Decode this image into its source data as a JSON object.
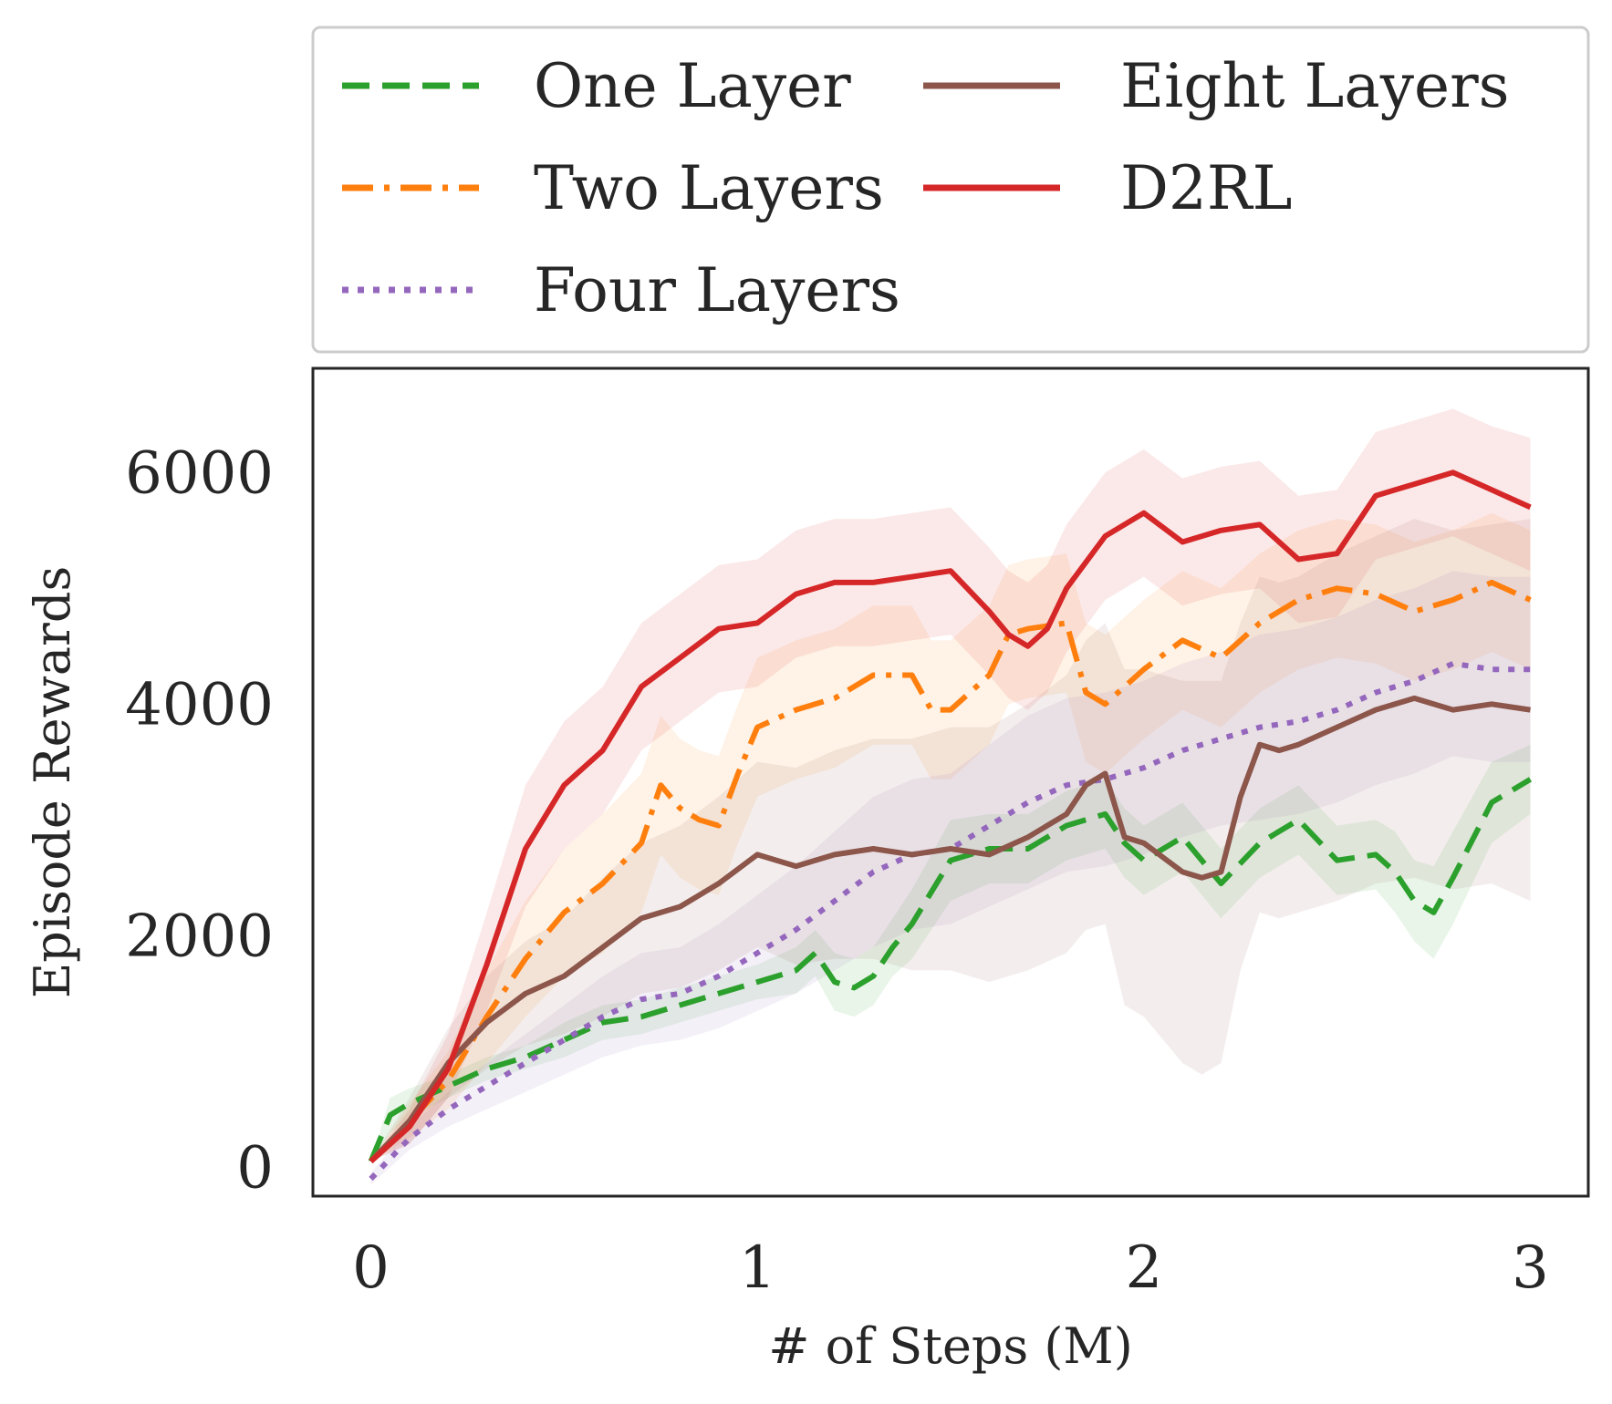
{
  "chart_data": {
    "type": "line",
    "title": "",
    "xlabel": "# of Steps (M)",
    "ylabel": "Episode Rewards",
    "xlim": [
      -0.15,
      3.15
    ],
    "ylim": [
      -250,
      6900
    ],
    "xticks": [
      0,
      1,
      2,
      3
    ],
    "yticks": [
      0,
      2000,
      4000,
      6000
    ],
    "grid": false,
    "legend_placement": "above plot, two columns",
    "series": [
      {
        "name": "One Layer",
        "color": "#2ca02c",
        "dash": "dashed",
        "x": [
          0,
          0.05,
          0.1,
          0.2,
          0.3,
          0.4,
          0.5,
          0.6,
          0.7,
          0.8,
          0.9,
          1.0,
          1.1,
          1.15,
          1.2,
          1.25,
          1.3,
          1.35,
          1.4,
          1.5,
          1.6,
          1.7,
          1.8,
          1.9,
          1.95,
          2.0,
          2.1,
          2.2,
          2.3,
          2.4,
          2.5,
          2.6,
          2.65,
          2.7,
          2.75,
          2.8,
          2.9,
          3.0
        ],
        "y": [
          50,
          450,
          550,
          700,
          850,
          950,
          1100,
          1250,
          1300,
          1400,
          1500,
          1600,
          1700,
          1850,
          1600,
          1550,
          1650,
          1900,
          2100,
          2650,
          2750,
          2750,
          2950,
          3050,
          2800,
          2650,
          2850,
          2450,
          2800,
          3000,
          2650,
          2700,
          2550,
          2300,
          2200,
          2500,
          3150,
          3350
        ],
        "band": [
          [
            50,
            50
          ],
          [
            300,
            600
          ],
          [
            420,
            680
          ],
          [
            600,
            800
          ],
          [
            750,
            950
          ],
          [
            850,
            1050
          ],
          [
            950,
            1250
          ],
          [
            1100,
            1400
          ],
          [
            1150,
            1450
          ],
          [
            1250,
            1550
          ],
          [
            1350,
            1650
          ],
          [
            1450,
            1750
          ],
          [
            1500,
            1900
          ],
          [
            1650,
            2050
          ],
          [
            1350,
            1850
          ],
          [
            1300,
            1800
          ],
          [
            1400,
            1900
          ],
          [
            1650,
            2150
          ],
          [
            1800,
            2400
          ],
          [
            2300,
            3000
          ],
          [
            2450,
            3050
          ],
          [
            2450,
            3050
          ],
          [
            2650,
            3250
          ],
          [
            2750,
            3350
          ],
          [
            2500,
            3100
          ],
          [
            2350,
            2950
          ],
          [
            2550,
            3150
          ],
          [
            2150,
            2750
          ],
          [
            2500,
            3100
          ],
          [
            2700,
            3300
          ],
          [
            2350,
            2950
          ],
          [
            2400,
            3000
          ],
          [
            2200,
            2900
          ],
          [
            1950,
            2650
          ],
          [
            1800,
            2600
          ],
          [
            2100,
            2900
          ],
          [
            2800,
            3500
          ],
          [
            3050,
            3650
          ]
        ]
      },
      {
        "name": "Two Layers",
        "color": "#ff7f0e",
        "dash": "dashdot",
        "x": [
          0,
          0.1,
          0.2,
          0.3,
          0.4,
          0.5,
          0.6,
          0.7,
          0.75,
          0.8,
          0.85,
          0.9,
          0.95,
          1.0,
          1.1,
          1.2,
          1.3,
          1.4,
          1.45,
          1.5,
          1.6,
          1.65,
          1.7,
          1.8,
          1.85,
          1.9,
          2.0,
          2.1,
          2.2,
          2.3,
          2.4,
          2.5,
          2.6,
          2.7,
          2.8,
          2.9,
          3.0
        ],
        "y": [
          50,
          400,
          750,
          1300,
          1800,
          2200,
          2450,
          2800,
          3300,
          3100,
          3000,
          2950,
          3400,
          3800,
          3950,
          4050,
          4250,
          4250,
          3950,
          3950,
          4250,
          4600,
          4650,
          4700,
          4100,
          4000,
          4300,
          4550,
          4400,
          4700,
          4900,
          5000,
          4950,
          4800,
          4900,
          5050,
          4900
        ],
        "band": [
          [
            50,
            50
          ],
          [
            250,
            550
          ],
          [
            500,
            1000
          ],
          [
            900,
            1700
          ],
          [
            1300,
            2300
          ],
          [
            1650,
            2750
          ],
          [
            1850,
            3050
          ],
          [
            2200,
            3400
          ],
          [
            2700,
            3900
          ],
          [
            2500,
            3700
          ],
          [
            2400,
            3600
          ],
          [
            2350,
            3550
          ],
          [
            2800,
            4000
          ],
          [
            3200,
            4400
          ],
          [
            3350,
            4550
          ],
          [
            3450,
            4650
          ],
          [
            3650,
            4850
          ],
          [
            3650,
            4850
          ],
          [
            3350,
            4550
          ],
          [
            3350,
            4550
          ],
          [
            3650,
            4850
          ],
          [
            4000,
            5200
          ],
          [
            4050,
            5250
          ],
          [
            4100,
            5300
          ],
          [
            3500,
            4700
          ],
          [
            3400,
            4600
          ],
          [
            3700,
            4900
          ],
          [
            3950,
            5150
          ],
          [
            3800,
            5000
          ],
          [
            4100,
            5300
          ],
          [
            4300,
            5500
          ],
          [
            4400,
            5600
          ],
          [
            4350,
            5550
          ],
          [
            4200,
            5400
          ],
          [
            4300,
            5500
          ],
          [
            4450,
            5650
          ],
          [
            4300,
            5500
          ]
        ]
      },
      {
        "name": "Four Layers",
        "color": "#9467bd",
        "dash": "dotted",
        "x": [
          0,
          0.1,
          0.2,
          0.3,
          0.4,
          0.5,
          0.6,
          0.7,
          0.8,
          0.9,
          1.0,
          1.1,
          1.2,
          1.3,
          1.4,
          1.5,
          1.6,
          1.7,
          1.8,
          1.9,
          2.0,
          2.1,
          2.2,
          2.3,
          2.4,
          2.5,
          2.6,
          2.7,
          2.8,
          2.9,
          3.0
        ],
        "y": [
          -100,
          250,
          500,
          700,
          900,
          1100,
          1300,
          1450,
          1500,
          1650,
          1850,
          2050,
          2300,
          2550,
          2700,
          2750,
          2950,
          3150,
          3300,
          3350,
          3450,
          3600,
          3700,
          3800,
          3850,
          3950,
          4100,
          4200,
          4350,
          4300,
          4300
        ],
        "band": [
          [
            -150,
            -50
          ],
          [
            150,
            350
          ],
          [
            350,
            650
          ],
          [
            500,
            900
          ],
          [
            650,
            1150
          ],
          [
            800,
            1400
          ],
          [
            950,
            1650
          ],
          [
            1050,
            1850
          ],
          [
            1100,
            1900
          ],
          [
            1200,
            2100
          ],
          [
            1350,
            2350
          ],
          [
            1500,
            2600
          ],
          [
            1700,
            2900
          ],
          [
            1900,
            3200
          ],
          [
            2050,
            3350
          ],
          [
            2100,
            3400
          ],
          [
            2250,
            3650
          ],
          [
            2400,
            3900
          ],
          [
            2550,
            4050
          ],
          [
            2600,
            4100
          ],
          [
            2700,
            4200
          ],
          [
            2850,
            4350
          ],
          [
            2950,
            4450
          ],
          [
            3000,
            4600
          ],
          [
            3050,
            4650
          ],
          [
            3150,
            4750
          ],
          [
            3300,
            4900
          ],
          [
            3400,
            5000
          ],
          [
            3550,
            5150
          ],
          [
            3500,
            5100
          ],
          [
            3500,
            5100
          ]
        ]
      },
      {
        "name": "Eight Layers",
        "color": "#8c564b",
        "dash": "solid",
        "x": [
          0,
          0.1,
          0.2,
          0.3,
          0.4,
          0.5,
          0.6,
          0.7,
          0.8,
          0.9,
          1.0,
          1.1,
          1.2,
          1.3,
          1.4,
          1.5,
          1.6,
          1.7,
          1.8,
          1.85,
          1.9,
          1.95,
          2.0,
          2.1,
          2.15,
          2.2,
          2.25,
          2.3,
          2.35,
          2.4,
          2.5,
          2.6,
          2.7,
          2.8,
          2.9,
          3.0
        ],
        "y": [
          50,
          400,
          900,
          1250,
          1500,
          1650,
          1900,
          2150,
          2250,
          2450,
          2700,
          2600,
          2700,
          2750,
          2700,
          2750,
          2700,
          2850,
          3050,
          3300,
          3400,
          2850,
          2800,
          2550,
          2500,
          2550,
          3200,
          3650,
          3600,
          3650,
          3800,
          3950,
          4050,
          3950,
          4000,
          3950
        ],
        "band": [
          [
            50,
            50
          ],
          [
            200,
            600
          ],
          [
            600,
            1200
          ],
          [
            850,
            1650
          ],
          [
            1050,
            1950
          ],
          [
            1150,
            2150
          ],
          [
            1300,
            2500
          ],
          [
            1500,
            2800
          ],
          [
            1550,
            2950
          ],
          [
            1700,
            3200
          ],
          [
            1900,
            3500
          ],
          [
            1750,
            3450
          ],
          [
            1800,
            3600
          ],
          [
            1800,
            3700
          ],
          [
            1700,
            3700
          ],
          [
            1700,
            3800
          ],
          [
            1600,
            3800
          ],
          [
            1700,
            4000
          ],
          [
            1850,
            4250
          ],
          [
            2050,
            4550
          ],
          [
            2100,
            4700
          ],
          [
            1400,
            4300
          ],
          [
            1300,
            4300
          ],
          [
            900,
            4200
          ],
          [
            800,
            4200
          ],
          [
            900,
            4200
          ],
          [
            1700,
            4700
          ],
          [
            2200,
            5100
          ],
          [
            2150,
            5050
          ],
          [
            2200,
            5100
          ],
          [
            2300,
            5300
          ],
          [
            2450,
            5450
          ],
          [
            2500,
            5600
          ],
          [
            2400,
            5500
          ],
          [
            2450,
            5550
          ],
          [
            2300,
            5600
          ]
        ]
      },
      {
        "name": "D2RL",
        "color": "#d62728",
        "dash": "solid",
        "x": [
          0,
          0.1,
          0.2,
          0.3,
          0.4,
          0.5,
          0.6,
          0.7,
          0.8,
          0.9,
          1.0,
          1.1,
          1.2,
          1.3,
          1.4,
          1.5,
          1.6,
          1.65,
          1.7,
          1.75,
          1.8,
          1.9,
          2.0,
          2.1,
          2.2,
          2.3,
          2.4,
          2.5,
          2.6,
          2.7,
          2.8,
          2.9,
          3.0
        ],
        "y": [
          50,
          350,
          850,
          1750,
          2750,
          3300,
          3600,
          4150,
          4400,
          4650,
          4700,
          4950,
          5050,
          5050,
          5100,
          5150,
          4800,
          4600,
          4500,
          4650,
          5000,
          5450,
          5650,
          5400,
          5500,
          5550,
          5250,
          5300,
          5800,
          5900,
          6000,
          5850,
          5700
        ],
        "band": [
          [
            50,
            50
          ],
          [
            200,
            500
          ],
          [
            600,
            1150
          ],
          [
            1350,
            2200
          ],
          [
            2250,
            3300
          ],
          [
            2750,
            3850
          ],
          [
            3050,
            4150
          ],
          [
            3600,
            4700
          ],
          [
            3850,
            4950
          ],
          [
            4100,
            5200
          ],
          [
            4150,
            5250
          ],
          [
            4400,
            5500
          ],
          [
            4500,
            5600
          ],
          [
            4500,
            5600
          ],
          [
            4550,
            5650
          ],
          [
            4600,
            5700
          ],
          [
            4250,
            5350
          ],
          [
            4050,
            5150
          ],
          [
            3950,
            5050
          ],
          [
            4100,
            5200
          ],
          [
            4450,
            5550
          ],
          [
            4900,
            6000
          ],
          [
            5100,
            6200
          ],
          [
            4850,
            5950
          ],
          [
            4950,
            6050
          ],
          [
            5000,
            6100
          ],
          [
            4700,
            5800
          ],
          [
            4750,
            5850
          ],
          [
            5250,
            6350
          ],
          [
            5350,
            6450
          ],
          [
            5450,
            6550
          ],
          [
            5300,
            6400
          ],
          [
            5150,
            6300
          ]
        ]
      }
    ]
  }
}
